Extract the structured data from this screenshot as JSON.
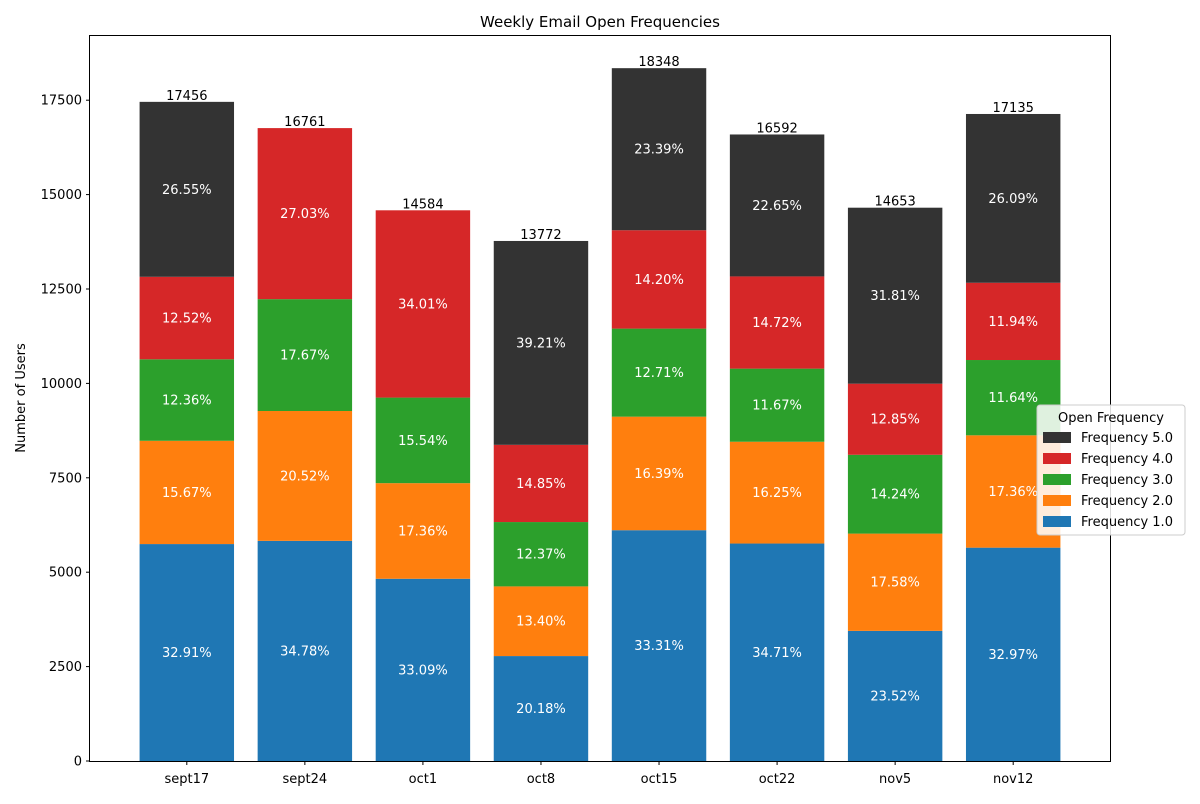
{
  "chart_data": {
    "type": "bar",
    "stacked": true,
    "title": "Weekly Email Open Frequencies",
    "xlabel": "",
    "ylabel": "Number of Users",
    "ylim": [
      0,
      19200
    ],
    "yticks": [
      0,
      2500,
      5000,
      7500,
      10000,
      12500,
      15000,
      17500
    ],
    "grid": false,
    "categories": [
      "sept17",
      "sept24",
      "oct1",
      "oct8",
      "oct15",
      "oct22",
      "nov5",
      "nov12"
    ],
    "totals": [
      17456,
      16761,
      14584,
      13772,
      18348,
      16592,
      14653,
      17135
    ],
    "legend": {
      "title": "Open Frequency",
      "placement": "center-right"
    },
    "series": [
      {
        "name": "Frequency 1.0",
        "color": "#1f77b4",
        "values": [
          5745,
          5830,
          4826,
          2779,
          6112,
          5759,
          3446,
          5650
        ],
        "labels": [
          "32.91%",
          "34.78%",
          "33.09%",
          "20.18%",
          "33.31%",
          "34.71%",
          "23.52%",
          "32.97%"
        ]
      },
      {
        "name": "Frequency 2.0",
        "color": "#ff7f0e",
        "values": [
          2735,
          3439,
          2532,
          1845,
          3007,
          2696,
          2576,
          2975
        ],
        "labels": [
          "15.67%",
          "20.52%",
          "17.36%",
          "13.40%",
          "16.39%",
          "16.25%",
          "17.58%",
          "17.36%"
        ]
      },
      {
        "name": "Frequency 3.0",
        "color": "#2ca02c",
        "values": [
          2158,
          2962,
          2266,
          1704,
          2332,
          1936,
          2087,
          1994
        ],
        "labels": [
          "12.36%",
          "17.67%",
          "15.54%",
          "12.37%",
          "12.71%",
          "11.67%",
          "14.24%",
          "11.64%"
        ]
      },
      {
        "name": "Frequency 4.0",
        "color": "#d62728",
        "values": [
          2185,
          4530,
          4960,
          2045,
          2605,
          2442,
          1883,
          2046
        ],
        "labels": [
          "12.52%",
          "27.03%",
          "34.01%",
          "14.85%",
          "14.20%",
          "14.72%",
          "12.85%",
          "11.94%"
        ]
      },
      {
        "name": "Frequency 5.0",
        "color": "#333333",
        "values": [
          4633,
          0,
          0,
          5399,
          4292,
          3759,
          4661,
          4470
        ],
        "labels": [
          "26.55%",
          "",
          "",
          "39.21%",
          "23.39%",
          "22.65%",
          "31.81%",
          "26.09%"
        ]
      }
    ]
  }
}
